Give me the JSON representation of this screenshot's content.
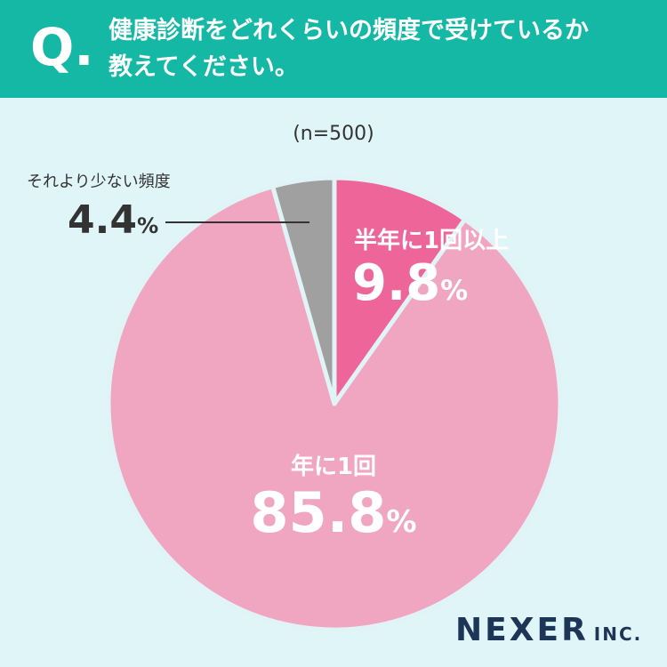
{
  "question": {
    "mark": "Q",
    "line1": "健康診断をどれくらいの頻度で受けているか",
    "line2": "教えてください。"
  },
  "chart_data": {
    "type": "pie",
    "sample": "(n=500)",
    "slices": [
      {
        "label": "半年に1回以上",
        "value": 9.8,
        "display": "9.8",
        "unit": "%",
        "color": "#ee6699"
      },
      {
        "label": "年に1回",
        "value": 85.8,
        "display": "85.8",
        "unit": "%",
        "color": "#f0a6c0"
      },
      {
        "label": "それより少ない頻度",
        "value": 4.4,
        "display": "4.4",
        "unit": "%",
        "color": "#a0a0a0"
      }
    ]
  },
  "logo": {
    "main": "NEXER",
    "suffix": "INC."
  },
  "colors": {
    "header": "#15b8a4",
    "background": "#dff5f8",
    "separator": "#e0f4f7"
  }
}
